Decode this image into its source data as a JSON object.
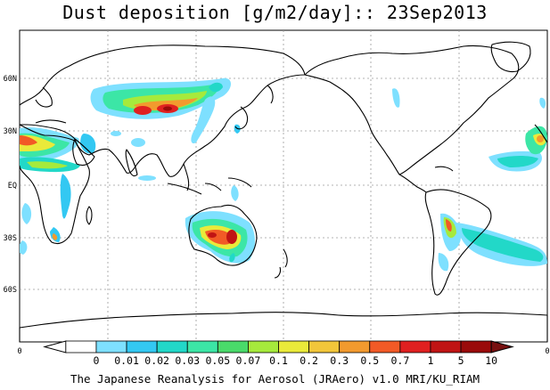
{
  "title": "Dust deposition [g/m2/day]:: 23Sep2013",
  "credit": "The Japanese Reanalysis for Aerosol (JRAero) v1.0 MRI/KU_RIAM",
  "axis": {
    "lat_labels": [
      "60N",
      "30N",
      "EQ",
      "30S",
      "60S"
    ],
    "lon_left": "0",
    "lon_right": "0"
  },
  "colorbar": {
    "labels": [
      "0",
      "0.01",
      "0.02",
      "0.03",
      "0.05",
      "0.07",
      "0.1",
      "0.2",
      "0.3",
      "0.5",
      "0.7",
      "1",
      "5",
      "10"
    ],
    "colors": [
      "#ffffff",
      "#ffffff",
      "#7ee0ff",
      "#33c8f2",
      "#22d8c8",
      "#3ce6a6",
      "#4ada6a",
      "#a6ea3c",
      "#eaea3a",
      "#f2c63a",
      "#f29a2e",
      "#f25a26",
      "#e02020",
      "#c01414",
      "#9a0a0a",
      "#781010"
    ]
  }
}
